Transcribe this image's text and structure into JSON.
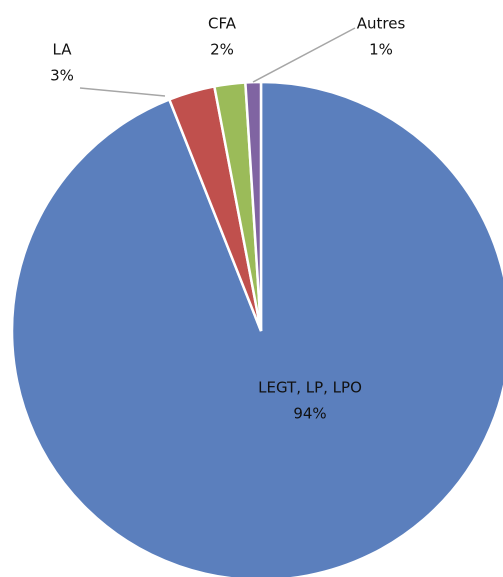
{
  "chart_data": {
    "type": "pie",
    "categories": [
      "LEGT, LP, LPO",
      "LA",
      "CFA",
      "Autres"
    ],
    "values": [
      94,
      3,
      2,
      1
    ],
    "value_labels": [
      "94%",
      "3%",
      "2%",
      "1%"
    ],
    "colors": [
      "#5b7fbd",
      "#c0504d",
      "#9bbb59",
      "#8064a2"
    ]
  }
}
